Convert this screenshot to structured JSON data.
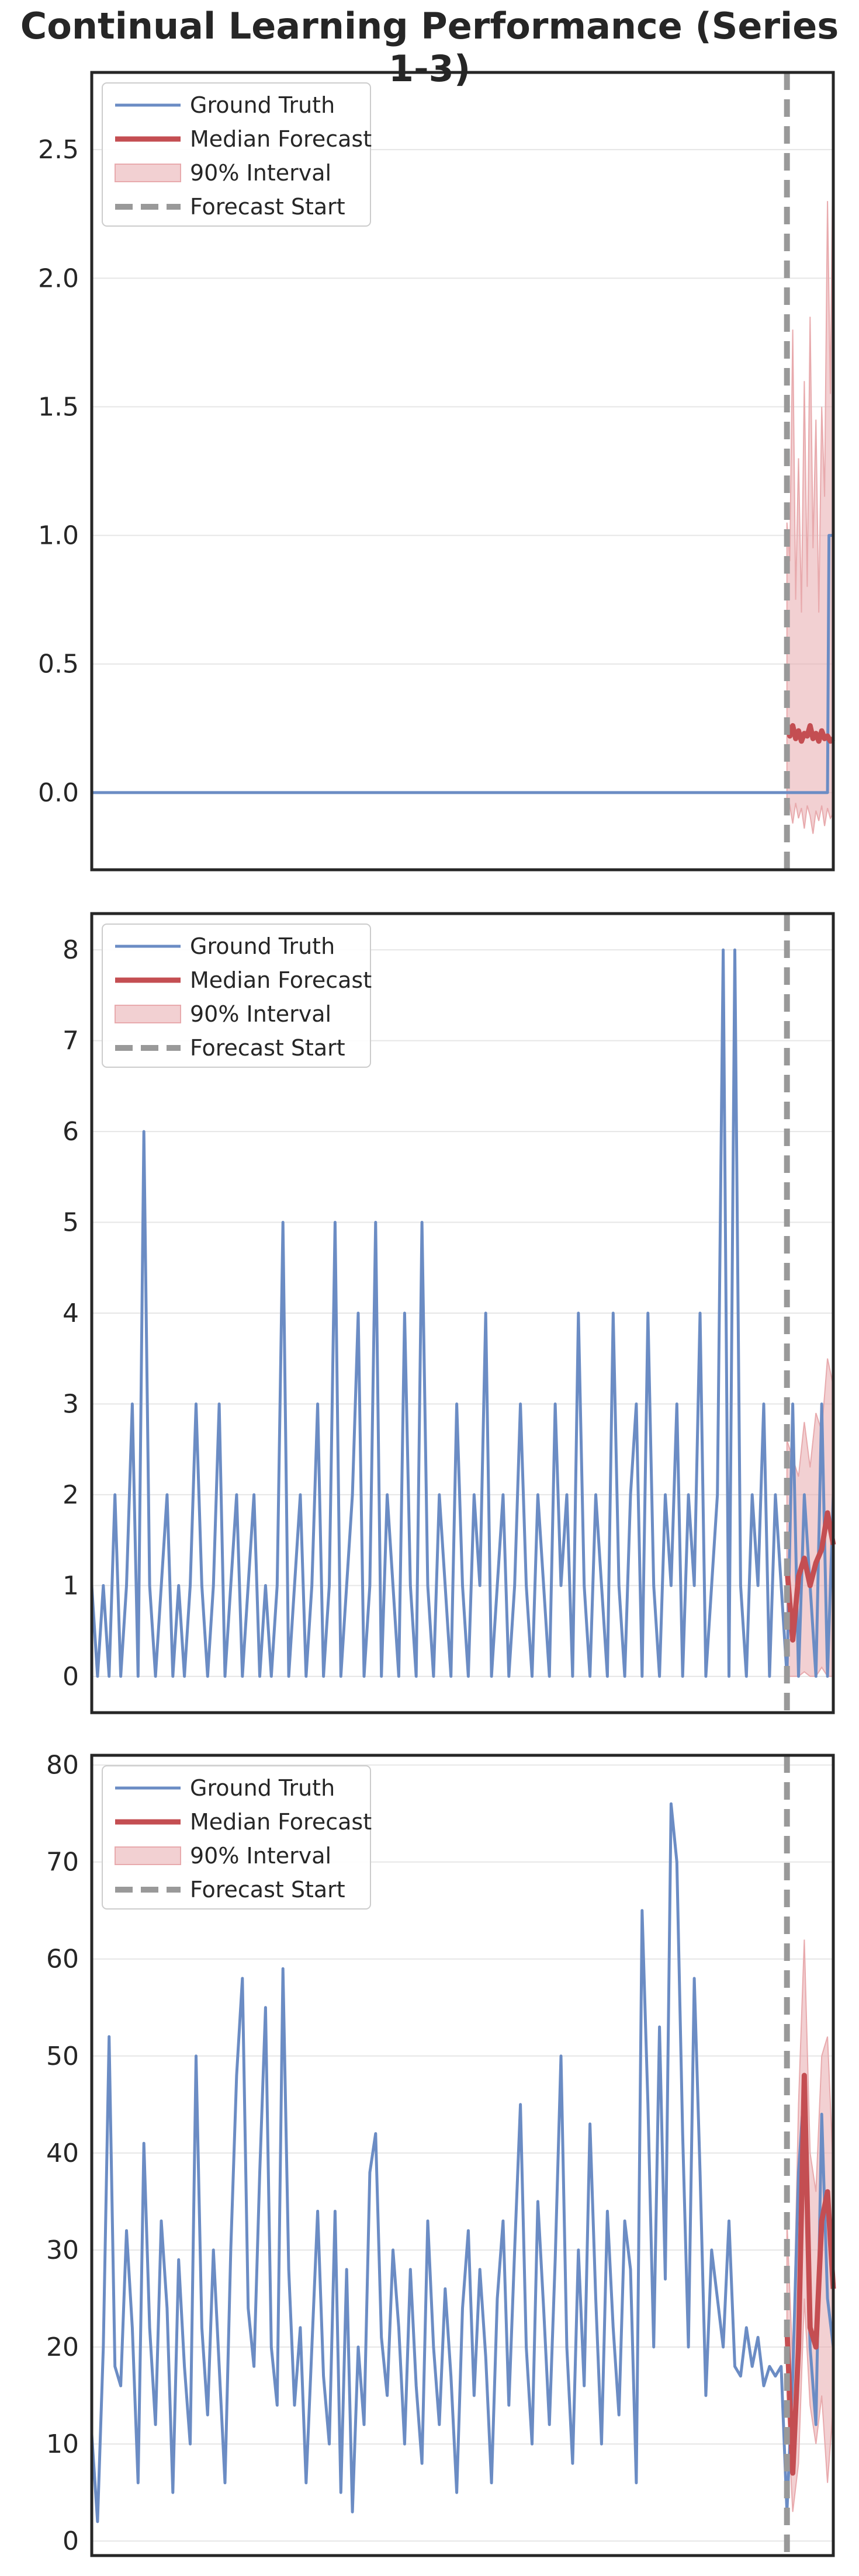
{
  "title": "Continual Learning Performance (Series 1-3)",
  "legend": {
    "ground_truth": "Ground Truth",
    "median": "Median Forecast",
    "interval": "90% Interval",
    "start": "Forecast Start"
  },
  "colors": {
    "ground_truth": "#6b8cc4",
    "median": "#c44e52",
    "interval": "#e8aaad",
    "start": "#999999"
  },
  "chart_data": [
    {
      "type": "line",
      "x_range": [
        0,
        512
      ],
      "ylim": [
        -0.3,
        2.8
      ],
      "yticks": [
        0.0,
        0.5,
        1.0,
        1.5,
        2.0,
        2.5
      ],
      "ytick_labels": [
        "0.0",
        "0.5",
        "1.0",
        "1.5",
        "2.0",
        "2.5"
      ],
      "forecast_start": 480,
      "ground_truth": {
        "x": [
          0,
          478,
          479,
          480,
          508,
          509,
          512
        ],
        "y": [
          0,
          0,
          0,
          0,
          0,
          1.0,
          1.0
        ]
      },
      "median": {
        "x": [
          480,
          482,
          484,
          486,
          488,
          490,
          492,
          494,
          496,
          498,
          500,
          502,
          504,
          506,
          508,
          510,
          512
        ],
        "y": [
          0.27,
          0.22,
          0.26,
          0.21,
          0.24,
          0.2,
          0.23,
          0.22,
          0.26,
          0.21,
          0.23,
          0.2,
          0.24,
          0.21,
          0.22,
          0.2,
          0.21
        ]
      },
      "interval": {
        "x": [
          480,
          482,
          484,
          486,
          488,
          490,
          492,
          494,
          496,
          498,
          500,
          502,
          504,
          506,
          508,
          510,
          512
        ],
        "lower": [
          -0.08,
          -0.05,
          -0.12,
          -0.04,
          -0.1,
          -0.06,
          -0.14,
          -0.05,
          -0.09,
          -0.16,
          -0.07,
          -0.11,
          -0.05,
          -0.13,
          -0.06,
          -0.1,
          -0.08
        ],
        "upper": [
          1.05,
          0.9,
          1.8,
          0.75,
          1.3,
          0.7,
          1.6,
          0.8,
          1.85,
          0.95,
          1.45,
          0.7,
          1.5,
          1.15,
          2.3,
          1.55,
          2.65
        ]
      }
    },
    {
      "type": "line",
      "x_range": [
        0,
        512
      ],
      "ylim": [
        -0.4,
        8.4
      ],
      "yticks": [
        0,
        1,
        2,
        3,
        4,
        5,
        6,
        7,
        8
      ],
      "ytick_labels": [
        "0",
        "1",
        "2",
        "3",
        "4",
        "5",
        "6",
        "7",
        "8"
      ],
      "forecast_start": 480,
      "ground_truth": {
        "x": [
          0,
          4,
          8,
          12,
          16,
          20,
          24,
          28,
          32,
          36,
          40,
          44,
          48,
          52,
          56,
          60,
          64,
          68,
          72,
          76,
          80,
          84,
          88,
          92,
          96,
          100,
          104,
          108,
          112,
          116,
          120,
          124,
          128,
          132,
          136,
          140,
          144,
          148,
          152,
          156,
          160,
          164,
          168,
          172,
          176,
          180,
          184,
          188,
          192,
          196,
          200,
          204,
          208,
          212,
          216,
          220,
          224,
          228,
          232,
          236,
          240,
          244,
          248,
          252,
          256,
          260,
          264,
          268,
          272,
          276,
          280,
          284,
          288,
          292,
          296,
          300,
          304,
          308,
          312,
          316,
          320,
          324,
          328,
          332,
          336,
          340,
          344,
          348,
          352,
          356,
          360,
          364,
          368,
          372,
          376,
          380,
          384,
          388,
          392,
          396,
          400,
          404,
          408,
          412,
          416,
          420,
          424,
          428,
          432,
          436,
          440,
          444,
          448,
          452,
          456,
          460,
          464,
          468,
          472,
          476,
          480,
          484,
          488,
          492,
          496,
          500,
          504,
          508,
          512
        ],
        "y": [
          1,
          0,
          1,
          0,
          2,
          0,
          1,
          3,
          0,
          6,
          1,
          0,
          1,
          2,
          0,
          1,
          0,
          1,
          3,
          1,
          0,
          1,
          3,
          0,
          1,
          2,
          0,
          1,
          2,
          0,
          1,
          0,
          1,
          5,
          0,
          1,
          2,
          0,
          1,
          3,
          0,
          1,
          5,
          0,
          1,
          2,
          4,
          0,
          1,
          5,
          0,
          2,
          1,
          0,
          4,
          1,
          0,
          5,
          1,
          0,
          2,
          1,
          0,
          3,
          1,
          0,
          2,
          1,
          4,
          0,
          1,
          2,
          0,
          1,
          3,
          1,
          0,
          2,
          1,
          0,
          3,
          1,
          2,
          0,
          4,
          1,
          0,
          2,
          1,
          0,
          4,
          1,
          0,
          2,
          3,
          0,
          4,
          1,
          0,
          2,
          1,
          3,
          0,
          2,
          1,
          4,
          0,
          1,
          2,
          8,
          0,
          8,
          1,
          0,
          2,
          1,
          3,
          0,
          2,
          1,
          0,
          3,
          0,
          2,
          1,
          0,
          3,
          0,
          2
        ]
      },
      "median": {
        "x": [
          480,
          484,
          488,
          492,
          496,
          500,
          504,
          508,
          512
        ],
        "y": [
          1.2,
          0.4,
          1.1,
          1.3,
          1.0,
          1.25,
          1.4,
          1.8,
          1.45
        ]
      },
      "interval": {
        "x": [
          480,
          484,
          488,
          492,
          496,
          500,
          504,
          508,
          512
        ],
        "lower": [
          0.0,
          0.0,
          0.0,
          0.05,
          0.0,
          0.0,
          0.1,
          0.0,
          0.0
        ],
        "upper": [
          2.6,
          2.4,
          2.2,
          2.8,
          2.3,
          2.9,
          2.7,
          3.5,
          3.2
        ]
      }
    },
    {
      "type": "line",
      "x_range": [
        0,
        512
      ],
      "ylim": [
        -1.5,
        81
      ],
      "yticks": [
        0,
        10,
        20,
        30,
        40,
        50,
        60,
        70,
        80
      ],
      "ytick_labels": [
        "0",
        "10",
        "20",
        "30",
        "40",
        "50",
        "60",
        "70",
        "80"
      ],
      "forecast_start": 480,
      "ground_truth": {
        "x": [
          0,
          4,
          8,
          12,
          16,
          20,
          24,
          28,
          32,
          36,
          40,
          44,
          48,
          52,
          56,
          60,
          64,
          68,
          72,
          76,
          80,
          84,
          88,
          92,
          96,
          100,
          104,
          108,
          112,
          116,
          120,
          124,
          128,
          132,
          136,
          140,
          144,
          148,
          152,
          156,
          160,
          164,
          168,
          172,
          176,
          180,
          184,
          188,
          192,
          196,
          200,
          204,
          208,
          212,
          216,
          220,
          224,
          228,
          232,
          236,
          240,
          244,
          248,
          252,
          256,
          260,
          264,
          268,
          272,
          276,
          280,
          284,
          288,
          292,
          296,
          300,
          304,
          308,
          312,
          316,
          320,
          324,
          328,
          332,
          336,
          340,
          344,
          348,
          352,
          356,
          360,
          364,
          368,
          372,
          376,
          380,
          384,
          388,
          392,
          396,
          400,
          404,
          408,
          412,
          416,
          420,
          424,
          428,
          432,
          436,
          440,
          444,
          448,
          452,
          456,
          460,
          464,
          468,
          472,
          476,
          480,
          484,
          488,
          492,
          496,
          500,
          504,
          508,
          512
        ],
        "y": [
          11,
          2,
          20,
          52,
          18,
          16,
          32,
          22,
          6,
          41,
          22,
          12,
          33,
          24,
          5,
          29,
          18,
          10,
          50,
          22,
          13,
          30,
          18,
          6,
          30,
          48,
          58,
          24,
          18,
          38,
          55,
          20,
          14,
          59,
          28,
          14,
          22,
          6,
          20,
          34,
          17,
          10,
          34,
          5,
          28,
          3,
          20,
          12,
          38,
          42,
          21,
          15,
          30,
          22,
          10,
          28,
          16,
          8,
          33,
          20,
          12,
          26,
          17,
          5,
          24,
          32,
          15,
          28,
          19,
          6,
          25,
          33,
          14,
          30,
          45,
          20,
          10,
          35,
          24,
          12,
          29,
          50,
          20,
          8,
          30,
          16,
          43,
          25,
          10,
          34,
          22,
          13,
          33,
          28,
          6,
          65,
          45,
          20,
          53,
          27,
          76,
          70,
          42,
          20,
          58,
          38,
          15,
          30,
          25,
          20,
          33,
          18,
          17,
          22,
          18,
          21,
          16,
          18,
          17,
          18,
          3,
          17,
          38,
          47,
          20,
          12,
          44,
          25,
          20
        ]
      },
      "median": {
        "x": [
          480,
          484,
          488,
          492,
          496,
          500,
          504,
          508,
          512
        ],
        "y": [
          22,
          7,
          20,
          48,
          22,
          20,
          33,
          36,
          26
        ]
      },
      "interval": {
        "x": [
          480,
          484,
          488,
          492,
          496,
          500,
          504,
          508,
          512
        ],
        "lower": [
          15,
          3,
          8,
          25,
          14,
          10,
          15,
          6,
          14
        ],
        "upper": [
          33,
          18,
          45,
          62,
          40,
          36,
          50,
          52,
          38
        ]
      }
    }
  ]
}
